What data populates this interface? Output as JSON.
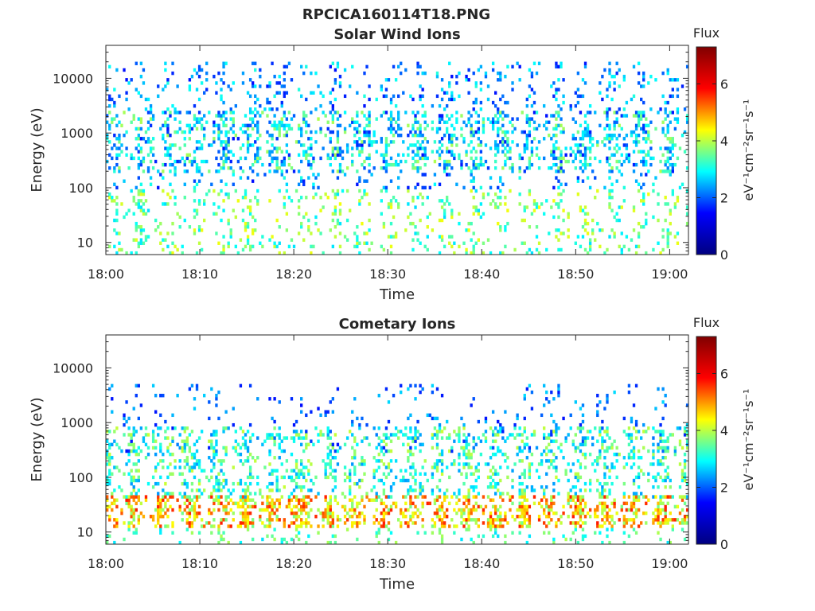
{
  "figure_title": "RPCICA160114T18.PNG",
  "colors": {
    "jet": [
      "#000080",
      "#0000ff",
      "#00ffff",
      "#ffff00",
      "#ff0000",
      "#800000"
    ]
  },
  "chart_data": [
    {
      "type": "heatmap",
      "title": "Solar Wind Ions",
      "xlabel": "Time",
      "ylabel": "Energy (eV)",
      "x_ticks": [
        "18:00",
        "18:10",
        "18:20",
        "18:30",
        "18:40",
        "18:50",
        "19:00"
      ],
      "xlim": [
        "18:00",
        "19:02"
      ],
      "y_ticks": [
        "10",
        "100",
        "1000",
        "10000"
      ],
      "ylim": [
        6,
        40000
      ],
      "y_scale": "log",
      "colorbar": {
        "label": "Flux",
        "unit": "eV⁻¹cm⁻²sr⁻¹s⁻¹",
        "range": [
          0,
          7.3
        ],
        "ticks": [
          "0",
          "2",
          "4",
          "6"
        ]
      },
      "bands": [
        {
          "emin": 100,
          "emax": 20000,
          "density": 0.1,
          "fmin": 1.0,
          "fmax": 3.0
        },
        {
          "emin": 200,
          "emax": 2500,
          "density": 0.2,
          "fmin": 1.5,
          "fmax": 4.0
        },
        {
          "emin": 6,
          "emax": 100,
          "density": 0.12,
          "fmin": 2.5,
          "fmax": 4.5
        }
      ]
    },
    {
      "type": "heatmap",
      "title": "Cometary Ions",
      "xlabel": "Time",
      "ylabel": "Energy (eV)",
      "x_ticks": [
        "18:00",
        "18:10",
        "18:20",
        "18:30",
        "18:40",
        "18:50",
        "19:00"
      ],
      "xlim": [
        "18:00",
        "19:02"
      ],
      "y_ticks": [
        "10",
        "100",
        "1000",
        "10000"
      ],
      "ylim": [
        6,
        40000
      ],
      "y_scale": "log",
      "colorbar": {
        "label": "Flux",
        "unit": "eV⁻¹cm⁻²sr⁻¹s⁻¹",
        "range": [
          0,
          7.3
        ],
        "ticks": [
          "0",
          "2",
          "4",
          "6"
        ]
      },
      "bands": [
        {
          "emin": 300,
          "emax": 5000,
          "density": 0.05,
          "fmin": 1.0,
          "fmax": 2.5
        },
        {
          "emin": 40,
          "emax": 800,
          "density": 0.22,
          "fmin": 2.0,
          "fmax": 4.2
        },
        {
          "emin": 12,
          "emax": 45,
          "density": 0.35,
          "fmin": 3.5,
          "fmax": 6.2
        },
        {
          "emin": 6,
          "emax": 12,
          "density": 0.1,
          "fmin": 2.5,
          "fmax": 4.0
        }
      ]
    }
  ]
}
